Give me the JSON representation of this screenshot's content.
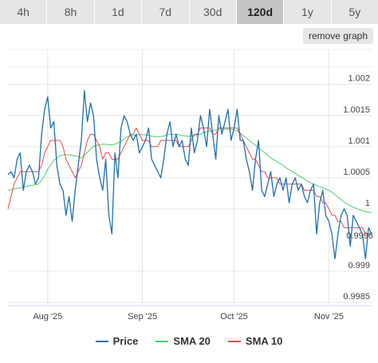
{
  "tabs": [
    {
      "label": "4h",
      "active": false
    },
    {
      "label": "8h",
      "active": false
    },
    {
      "label": "1d",
      "active": false
    },
    {
      "label": "7d",
      "active": false
    },
    {
      "label": "30d",
      "active": false
    },
    {
      "label": "120d",
      "active": true
    },
    {
      "label": "1y",
      "active": false
    },
    {
      "label": "5y",
      "active": false
    }
  ],
  "remove_graph_label": "remove graph",
  "last_price_label": "0.9996",
  "colors": {
    "price": "#1f6fb0",
    "sma20": "#4ccf6e",
    "sma10": "#e84a4a"
  },
  "chart_data": {
    "type": "line",
    "x_tick_labels": [
      "Aug '25",
      "Sep '25",
      "Oct '25",
      "Nov '25"
    ],
    "x_tick_days": [
      13,
      44,
      74,
      105
    ],
    "y_tick_labels": [
      "1.002",
      "1.0015",
      "1.001",
      "1.0005",
      "1",
      "0.999",
      "0.9985"
    ],
    "y_tick_values": [
      1.002,
      1.0015,
      1.001,
      1.0005,
      1.0,
      0.999,
      0.9985
    ],
    "ylim": [
      0.99845,
      1.00256
    ],
    "xlim": [
      0,
      119
    ],
    "grid": true,
    "legend": "bottom",
    "series": [
      {
        "name": "Price",
        "values": [
          1.00055,
          1.0006,
          1.0005,
          1.0008,
          1.0009,
          1.0003,
          1.0006,
          1.0007,
          1.0006,
          1.0004,
          1.0005,
          1.0012,
          1.0016,
          1.0018,
          1.0013,
          1.0014,
          1.0007,
          1.0004,
          1.0003,
          0.9999,
          1.0002,
          0.9998,
          1.0003,
          1.0007,
          1.0011,
          1.0019,
          1.0014,
          1.0017,
          1.0015,
          1.0008,
          1.0005,
          1.0003,
          1.0008,
          0.9999,
          0.9996,
          1.0009,
          1.0005,
          1.0013,
          1.0015,
          1.0014,
          1.0012,
          1.0011,
          1.0012,
          1.0009,
          1.001,
          1.0011,
          1.0013,
          1.0008,
          1.0007,
          1.0006,
          1.0005,
          1.0008,
          1.0012,
          1.0014,
          1.001,
          1.0012,
          1.001,
          1.0011,
          1.0008,
          1.0007,
          1.0013,
          1.0009,
          1.0011,
          1.0015,
          1.0013,
          1.001,
          1.0016,
          1.0012,
          1.0008,
          1.0015,
          1.0012,
          1.0014,
          1.0016,
          1.0011,
          1.0013,
          1.0016,
          1.0011,
          1.0011,
          1.0008,
          1.0006,
          1.0003,
          1.0008,
          1.0011,
          1.0003,
          1.0002,
          1.0004,
          1.0006,
          1.0002,
          1.0004,
          1.0005,
          1.0003,
          1.0005,
          1.0001,
          1.0004,
          1.0005,
          1.0003,
          1.0004,
          1.0002,
          1.0001,
          1.0003,
          1.0004,
          0.9996,
          1.0001,
          1.0003,
          0.9999,
          0.9998,
          0.9996,
          0.9992,
          0.9996,
          0.9999,
          1.0,
          0.9999,
          0.9994,
          0.9999,
          0.9998,
          0.9997,
          0.9996,
          0.9992,
          0.9997,
          0.9996
        ]
      },
      {
        "name": "SMA 20",
        "values": [
          1.0003,
          1.00031,
          1.00032,
          1.00033,
          1.00034,
          1.00035,
          1.00036,
          1.00037,
          1.00038,
          1.00039,
          1.0004,
          1.00046,
          1.00054,
          1.00064,
          1.00071,
          1.00078,
          1.00082,
          1.00085,
          1.00087,
          1.00087,
          1.00087,
          1.00086,
          1.00085,
          1.00084,
          1.00082,
          1.00086,
          1.00091,
          1.00096,
          1.00101,
          1.00102,
          1.00103,
          1.00104,
          1.00104,
          1.00103,
          1.00103,
          1.00104,
          1.00106,
          1.00109,
          1.00112,
          1.00116,
          1.00117,
          1.00118,
          1.00119,
          1.0012,
          1.00119,
          1.00119,
          1.00118,
          1.00117,
          1.00116,
          1.00116,
          1.00116,
          1.00117,
          1.00119,
          1.0012,
          1.0012,
          1.0012,
          1.00119,
          1.00118,
          1.00117,
          1.00117,
          1.00117,
          1.00118,
          1.00119,
          1.0012,
          1.00123,
          1.00124,
          1.00125,
          1.00126,
          1.00127,
          1.00128,
          1.00128,
          1.00128,
          1.00128,
          1.00128,
          1.00127,
          1.00125,
          1.00122,
          1.00118,
          1.00114,
          1.0011,
          1.00106,
          1.00102,
          1.00098,
          1.00094,
          1.0009,
          1.00086,
          1.00082,
          1.00079,
          1.00076,
          1.00073,
          1.0007,
          1.00066,
          1.00063,
          1.0006,
          1.00057,
          1.00054,
          1.00051,
          1.00048,
          1.00045,
          1.00042,
          1.0004,
          1.00038,
          1.00036,
          1.00034,
          1.00032,
          1.0003,
          1.00027,
          1.00023,
          1.00019,
          1.00015,
          1.00011,
          1.00008,
          1.00005,
          1.00003,
          1.00001,
          0.99999,
          0.99997,
          0.99996,
          0.99995,
          0.99994
        ]
      },
      {
        "name": "SMA 10",
        "values": [
          1.0,
          1.0002,
          1.0004,
          1.0005,
          1.0006,
          1.0006,
          1.0006,
          1.0006,
          1.0006,
          1.0006,
          1.0006,
          1.0007,
          1.0009,
          1.001,
          1.0011,
          1.0011,
          1.0011,
          1.0011,
          1.001,
          1.0008,
          1.0007,
          1.0006,
          1.0005,
          1.0006,
          1.0007,
          1.0009,
          1.0011,
          1.0012,
          1.0012,
          1.0011,
          1.001,
          1.0008,
          1.0009,
          1.0009,
          1.0008,
          1.0008,
          1.0008,
          1.0009,
          1.001,
          1.0011,
          1.0012,
          1.0012,
          1.0013,
          1.0012,
          1.0011,
          1.0011,
          1.0011,
          1.001,
          1.001,
          1.001,
          1.0011,
          1.0011,
          1.0011,
          1.0011,
          1.0011,
          1.0011,
          1.001,
          1.001,
          1.001,
          1.001,
          1.0011,
          1.0012,
          1.0012,
          1.0013,
          1.0013,
          1.0013,
          1.0013,
          1.0012,
          1.0012,
          1.0013,
          1.0013,
          1.0013,
          1.0013,
          1.0013,
          1.0013,
          1.0013,
          1.0012,
          1.0011,
          1.001,
          1.0009,
          1.0008,
          1.0008,
          1.0007,
          1.0006,
          1.0006,
          1.0005,
          1.0005,
          1.0005,
          1.0005,
          1.0004,
          1.0004,
          1.0004,
          1.0004,
          1.0004,
          1.0004,
          1.0004,
          1.0004,
          1.0003,
          1.0003,
          1.0003,
          1.0003,
          1.0002,
          1.0002,
          1.0001,
          1.0001,
          1.0,
          0.9999,
          0.9999,
          0.9998,
          0.9998,
          0.9997,
          0.9997,
          0.9997,
          0.9997,
          0.9997,
          0.9997,
          0.9997,
          0.9996,
          0.9996,
          0.9996
        ]
      }
    ]
  }
}
